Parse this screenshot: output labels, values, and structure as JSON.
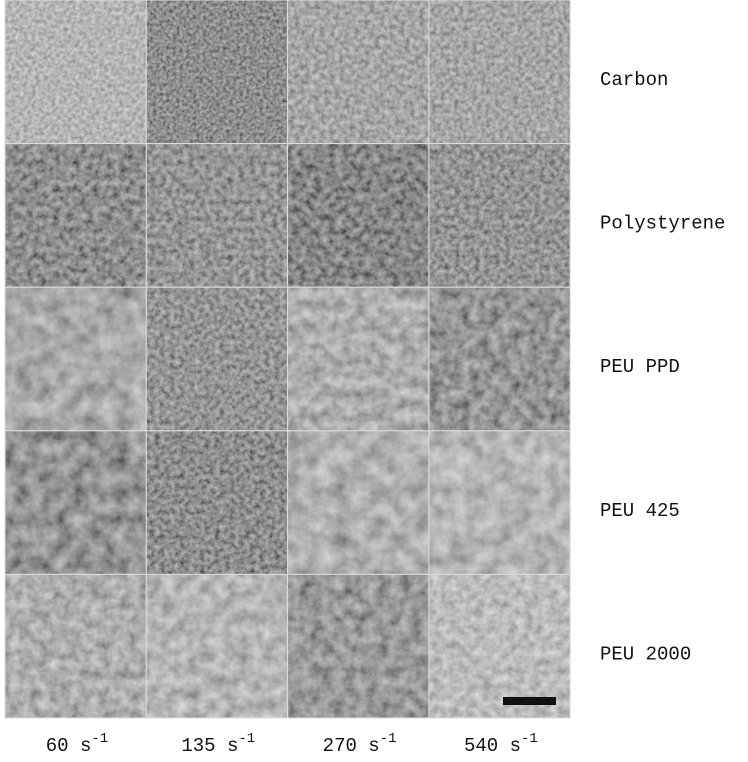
{
  "figure": {
    "rows": [
      "Carbon",
      "Polystyrene",
      "PEU PPD",
      "PEU 425",
      "PEU 2000"
    ],
    "columns": [
      {
        "text": "60 s",
        "sup": "-1"
      },
      {
        "text": "135 s",
        "sup": "-1"
      },
      {
        "text": "270 s",
        "sup": "-1"
      },
      {
        "text": "540 s",
        "sup": "-1"
      }
    ]
  }
}
